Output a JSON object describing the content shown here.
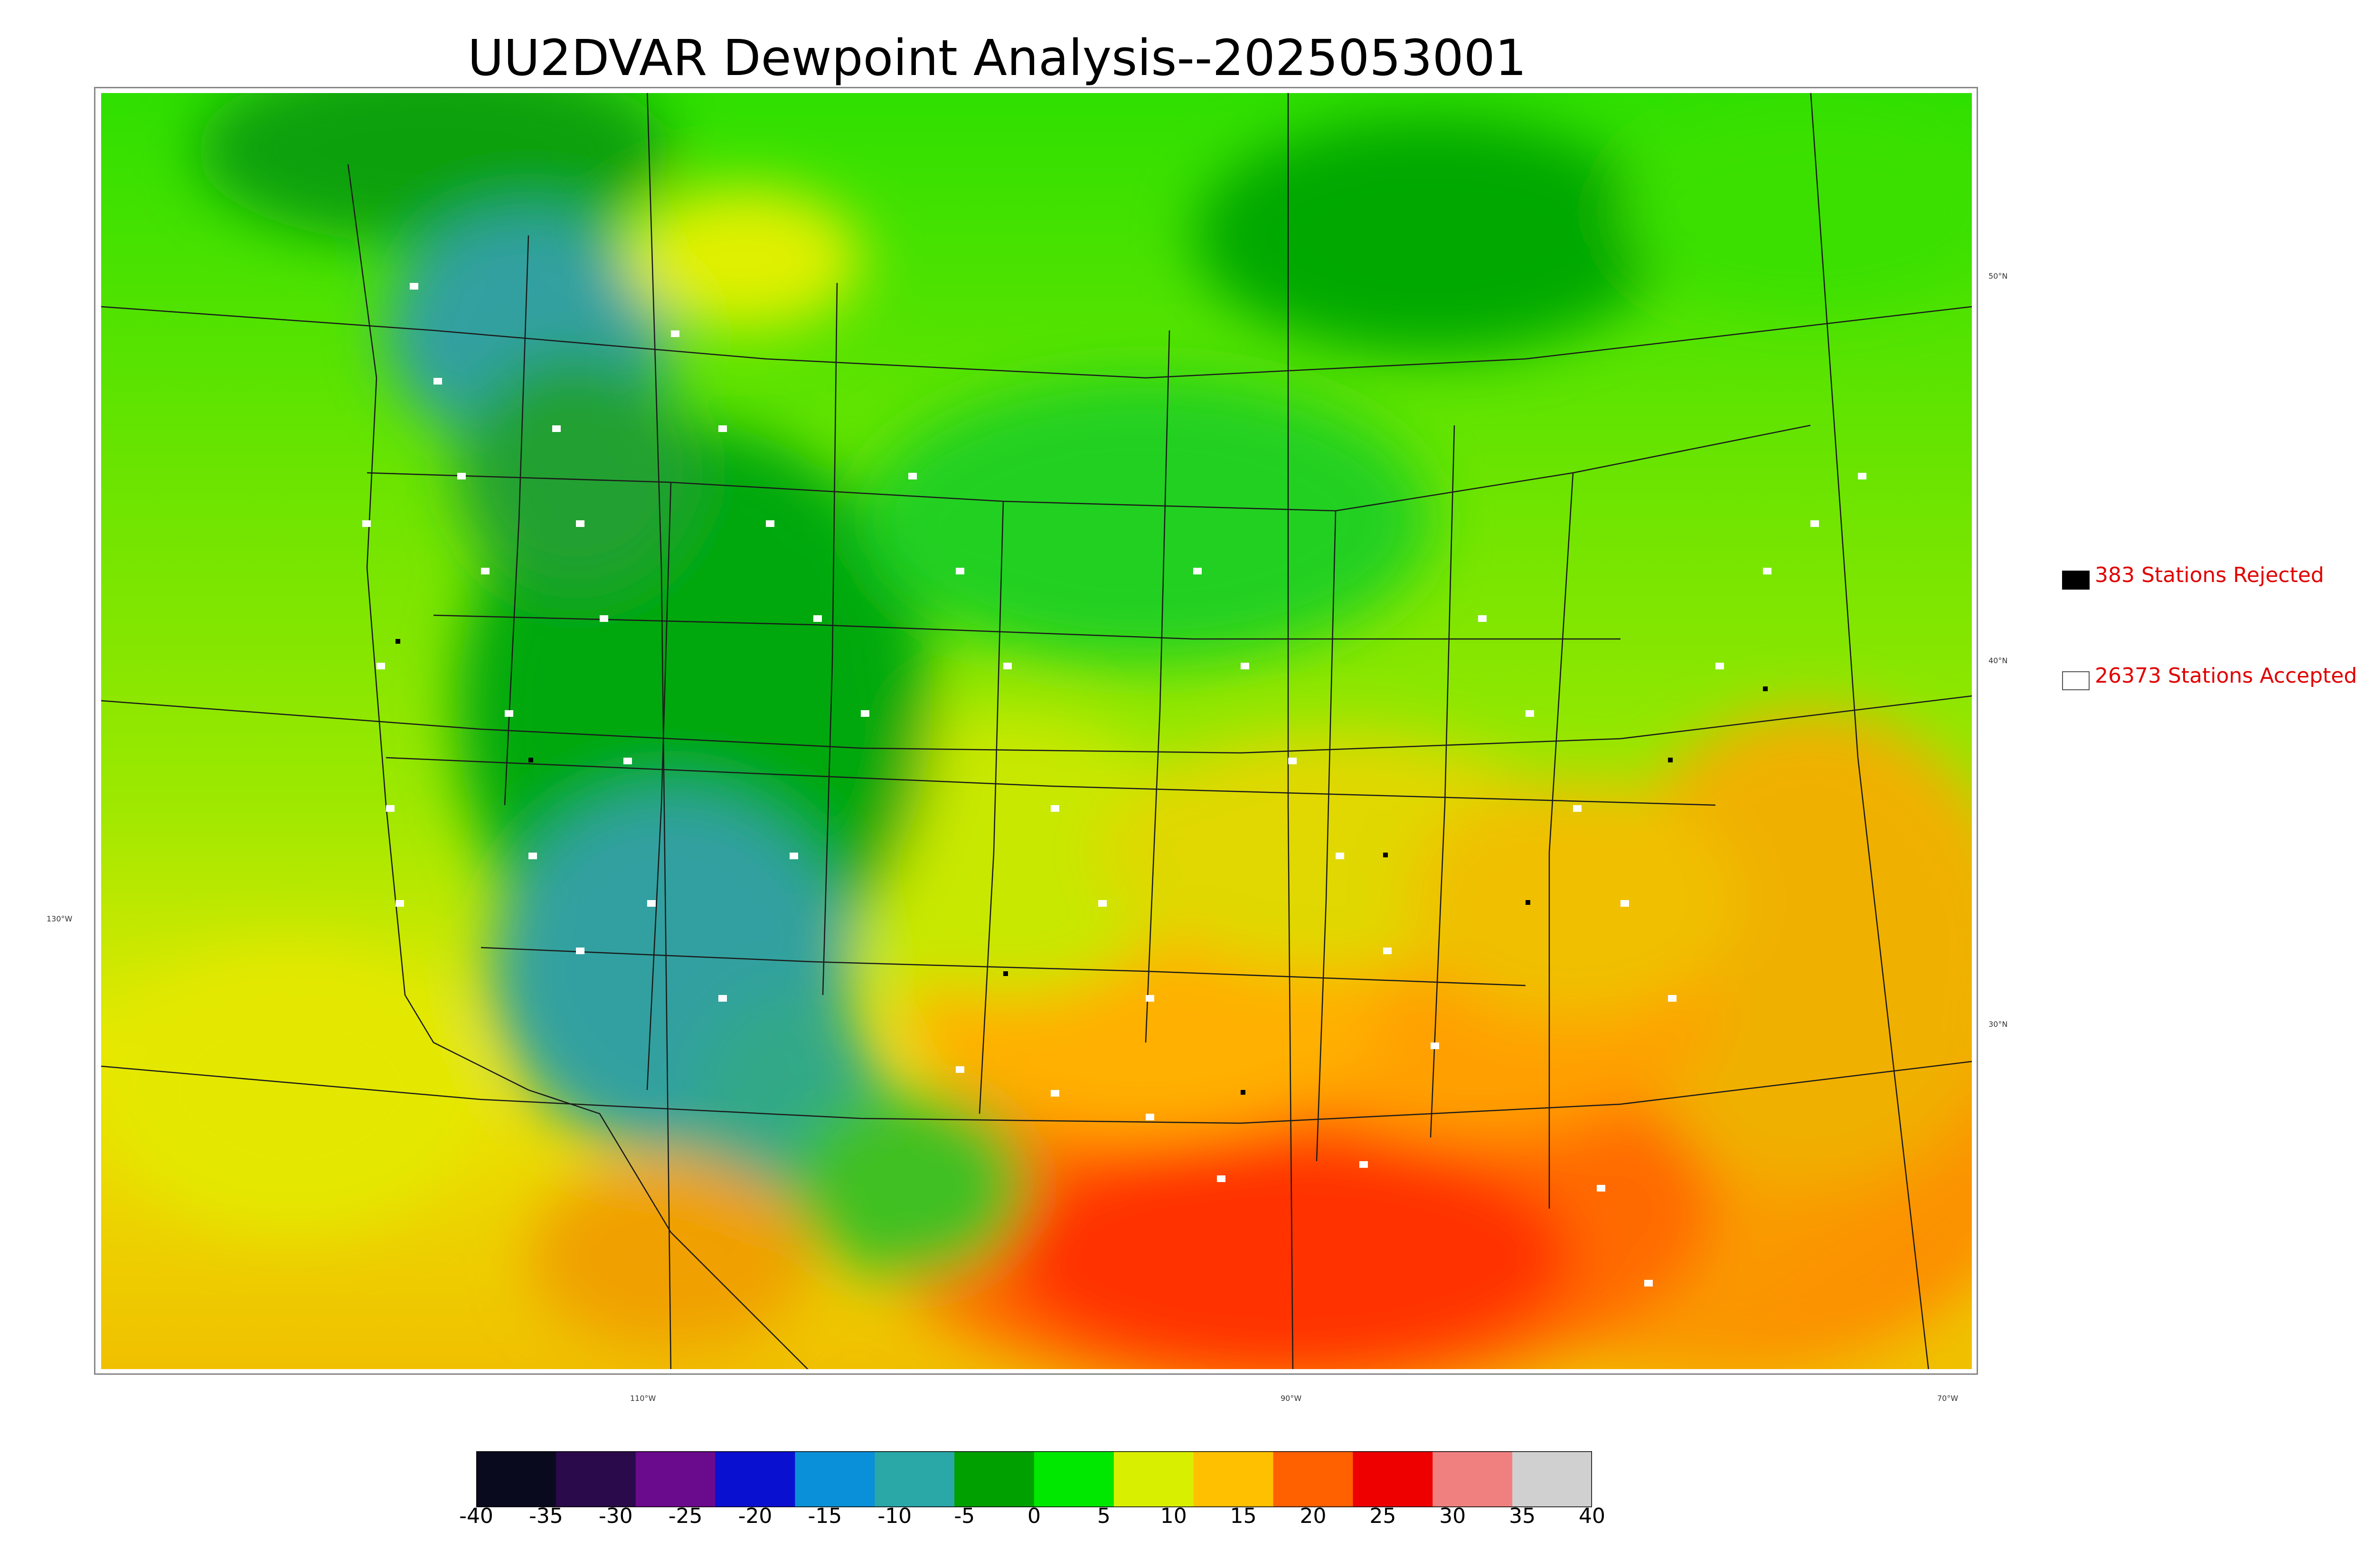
{
  "title": "UU2DVAR Dewpoint Analysis--2025053001",
  "graticule": {
    "lat_labels": [
      "50°N",
      "40°N",
      "30°N"
    ],
    "lon_labels": [
      "130°W",
      "110°W",
      "90°W",
      "70°W"
    ]
  },
  "legend": {
    "rejected": "383 Stations Rejected",
    "accepted": "26373 Stations Accepted",
    "rejected_color": "#000000",
    "accepted_color": "#ffffff"
  },
  "colorbar": {
    "ticks": [
      "-40",
      "-35",
      "-30",
      "-25",
      "-20",
      "-15",
      "-10",
      "-5",
      "0",
      "5",
      "10",
      "15",
      "20",
      "25",
      "30",
      "35",
      "40"
    ],
    "range": [
      -40,
      40
    ],
    "colors": [
      "#0a0a1e",
      "#2a0a4a",
      "#6a0a8c",
      "#0a10d0",
      "#0a90d8",
      "#2aa8a8",
      "#00a000",
      "#00e800",
      "#d8f000",
      "#ffc000",
      "#ff6000",
      "#ee0000",
      "#f08080",
      "#d0d0d0"
    ]
  }
}
